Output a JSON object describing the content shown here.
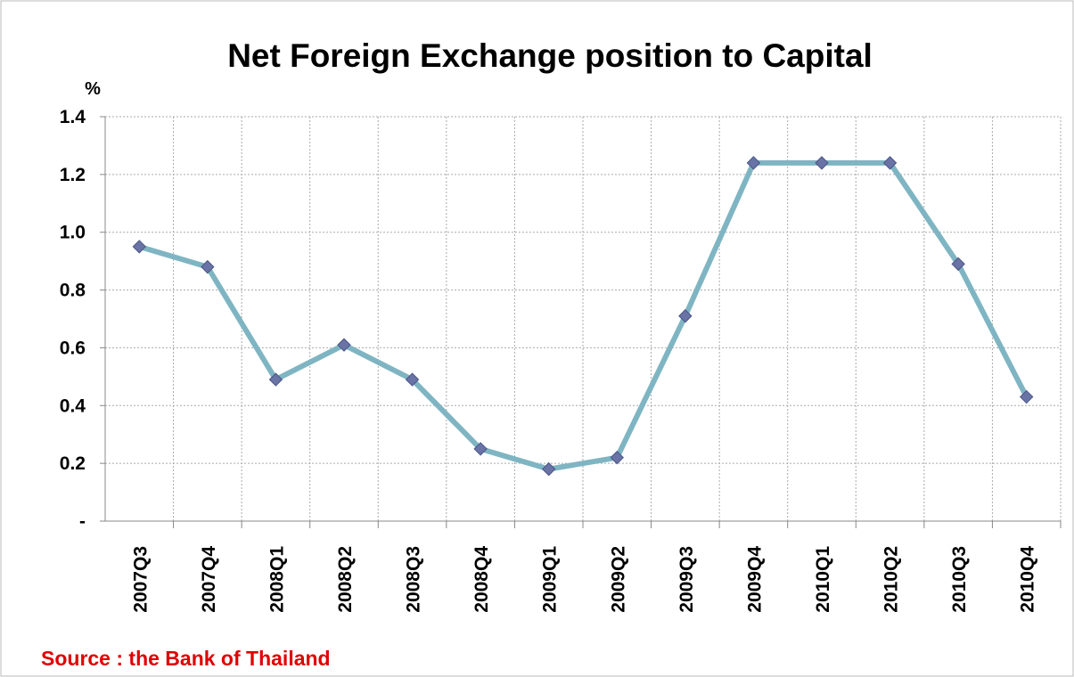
{
  "chart_data": {
    "type": "line",
    "title": "Net Foreign Exchange position to Capital",
    "y_label": "%",
    "source": "Source : the Bank of Thailand",
    "categories": [
      "2007Q3",
      "2007Q4",
      "2008Q1",
      "2008Q2",
      "2008Q3",
      "2008Q4",
      "2009Q1",
      "2009Q2",
      "2009Q3",
      "2009Q4",
      "2010Q1",
      "2010Q2",
      "2010Q3",
      "2010Q4"
    ],
    "series": [
      {
        "name": "Net Foreign Exchange position to Capital",
        "color": "#7fb5c3",
        "marker_color": "#6a73a6",
        "values": [
          0.95,
          0.88,
          0.49,
          0.61,
          0.49,
          0.25,
          0.18,
          0.22,
          0.71,
          1.24,
          1.24,
          1.24,
          0.89,
          0.43
        ]
      }
    ],
    "ylim": [
      0,
      1.4
    ],
    "yticks": [
      {
        "value": 0,
        "label": "-"
      },
      0.2,
      0.4,
      0.6,
      0.8,
      {
        "value": 1,
        "label": "1.0"
      },
      1.2,
      1.4
    ],
    "grid": true
  }
}
